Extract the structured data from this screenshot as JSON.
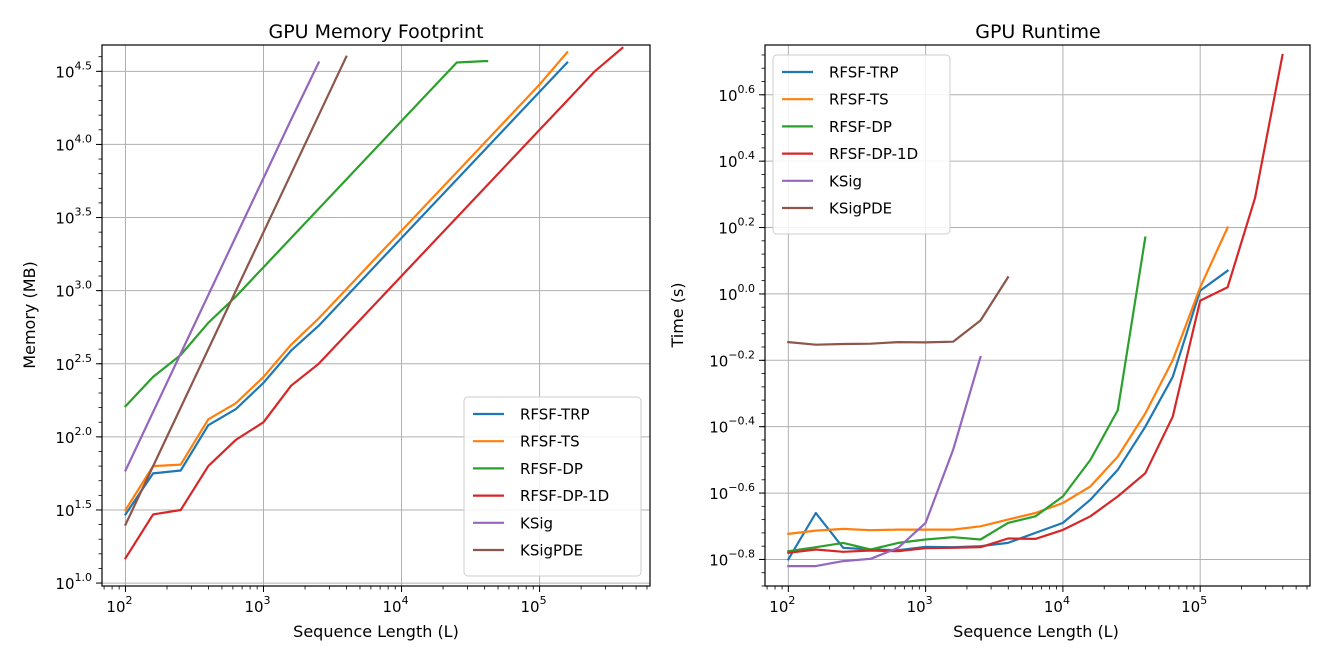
{
  "charts": [
    {
      "title": "GPU Memory Footprint",
      "xlabel": "Sequence Length (L)",
      "ylabel": "Memory (MB)",
      "xticks": [
        {
          "base": "10",
          "exp": "2"
        },
        {
          "base": "10",
          "exp": "3"
        },
        {
          "base": "10",
          "exp": "4"
        },
        {
          "base": "10",
          "exp": "5"
        }
      ],
      "yticks": [
        {
          "base": "10",
          "exp": "1.0"
        },
        {
          "base": "10",
          "exp": "1.5"
        },
        {
          "base": "10",
          "exp": "2.0"
        },
        {
          "base": "10",
          "exp": "2.5"
        },
        {
          "base": "10",
          "exp": "3.0"
        },
        {
          "base": "10",
          "exp": "3.5"
        },
        {
          "base": "10",
          "exp": "4.0"
        },
        {
          "base": "10",
          "exp": "4.5"
        }
      ]
    },
    {
      "title": "GPU Runtime",
      "xlabel": "Sequence Length (L)",
      "ylabel": "Time (s)",
      "xticks": [
        {
          "base": "10",
          "exp": "2"
        },
        {
          "base": "10",
          "exp": "3"
        },
        {
          "base": "10",
          "exp": "4"
        },
        {
          "base": "10",
          "exp": "5"
        }
      ],
      "yticks": [
        {
          "base": "10",
          "exp": "−0.8"
        },
        {
          "base": "10",
          "exp": "−0.6"
        },
        {
          "base": "10",
          "exp": "−0.4"
        },
        {
          "base": "10",
          "exp": "−0.2"
        },
        {
          "base": "10",
          "exp": "0.0"
        },
        {
          "base": "10",
          "exp": "0.2"
        },
        {
          "base": "10",
          "exp": "0.4"
        },
        {
          "base": "10",
          "exp": "0.6"
        }
      ]
    }
  ],
  "chart_data": [
    {
      "type": "line",
      "title": "GPU Memory Footprint",
      "xlabel": "Sequence Length (L)",
      "ylabel": "Memory (MB)",
      "xscale": "log",
      "yscale": "log",
      "xlim_log10": [
        1.83,
        5.8
      ],
      "ylim_log10": [
        0.98,
        4.68
      ],
      "grid": true,
      "legend": "lower-right",
      "series": [
        {
          "name": "RFSF-TRP",
          "color": "#1f77b4",
          "log10_x": [
            2.0,
            2.2,
            2.4,
            2.6,
            2.8,
            3.0,
            3.2,
            3.4,
            3.6,
            3.8,
            4.0,
            4.2,
            4.4,
            4.6,
            4.8,
            5.0,
            5.2
          ],
          "log10_y": [
            1.47,
            1.75,
            1.77,
            2.08,
            2.19,
            2.37,
            2.59,
            2.76,
            2.96,
            3.16,
            3.36,
            3.56,
            3.76,
            3.96,
            4.16,
            4.36,
            4.56
          ]
        },
        {
          "name": "RFSF-TS",
          "color": "#ff7f0e",
          "log10_x": [
            2.0,
            2.2,
            2.4,
            2.6,
            2.8,
            3.0,
            3.2,
            3.4,
            3.6,
            3.8,
            4.0,
            4.2,
            4.4,
            4.6,
            4.8,
            5.0,
            5.2
          ],
          "log10_y": [
            1.5,
            1.8,
            1.81,
            2.12,
            2.23,
            2.41,
            2.63,
            2.81,
            3.01,
            3.21,
            3.41,
            3.61,
            3.81,
            4.01,
            4.21,
            4.41,
            4.63
          ]
        },
        {
          "name": "RFSF-DP",
          "color": "#2ca02c",
          "log10_x": [
            2.0,
            2.2,
            2.4,
            2.6,
            2.8,
            3.0,
            3.2,
            3.4,
            3.6,
            3.8,
            4.0,
            4.2,
            4.4,
            4.6,
            4.62
          ],
          "log10_y": [
            2.21,
            2.41,
            2.56,
            2.78,
            2.96,
            3.16,
            3.36,
            3.56,
            3.76,
            3.96,
            4.16,
            4.36,
            4.56,
            4.57,
            4.57
          ]
        },
        {
          "name": "RFSF-DP-1D",
          "color": "#d62728",
          "log10_x": [
            2.0,
            2.2,
            2.4,
            2.6,
            2.8,
            3.0,
            3.2,
            3.4,
            3.6,
            3.8,
            4.0,
            4.2,
            4.4,
            4.6,
            4.8,
            5.0,
            5.2,
            5.4,
            5.6
          ],
          "log10_y": [
            1.17,
            1.47,
            1.5,
            1.8,
            1.98,
            2.1,
            2.35,
            2.5,
            2.7,
            2.9,
            3.1,
            3.3,
            3.5,
            3.7,
            3.9,
            4.1,
            4.3,
            4.5,
            4.66
          ]
        },
        {
          "name": "KSig",
          "color": "#9467bd",
          "log10_x": [
            2.0,
            2.2,
            2.4,
            2.6,
            2.8,
            3.0,
            3.2,
            3.4
          ],
          "log10_y": [
            1.77,
            2.17,
            2.57,
            2.97,
            3.37,
            3.77,
            4.17,
            4.56
          ]
        },
        {
          "name": "KSigPDE",
          "color": "#8c564b",
          "log10_x": [
            2.0,
            2.2,
            2.4,
            2.6,
            2.8,
            3.0,
            3.2,
            3.4,
            3.6
          ],
          "log10_y": [
            1.4,
            1.8,
            2.2,
            2.6,
            3.0,
            3.4,
            3.8,
            4.2,
            4.6
          ]
        }
      ]
    },
    {
      "type": "line",
      "title": "GPU Runtime",
      "xlabel": "Sequence Length (L)",
      "ylabel": "Time (s)",
      "xscale": "log",
      "yscale": "log",
      "xlim_log10": [
        1.83,
        5.8
      ],
      "ylim_log10": [
        -0.88,
        0.75
      ],
      "grid": true,
      "legend": "top-left",
      "series": [
        {
          "name": "RFSF-TRP",
          "color": "#1f77b4",
          "log10_x": [
            2.0,
            2.2,
            2.4,
            2.6,
            2.8,
            3.0,
            3.2,
            3.4,
            3.6,
            3.8,
            4.0,
            4.2,
            4.4,
            4.6,
            4.8,
            5.0,
            5.2
          ],
          "log10_y": [
            -0.8,
            -0.66,
            -0.765,
            -0.77,
            -0.772,
            -0.762,
            -0.763,
            -0.76,
            -0.75,
            -0.72,
            -0.69,
            -0.62,
            -0.53,
            -0.4,
            -0.25,
            0.01,
            0.07
          ]
        },
        {
          "name": "RFSF-TS",
          "color": "#ff7f0e",
          "log10_x": [
            2.0,
            2.2,
            2.4,
            2.6,
            2.8,
            3.0,
            3.2,
            3.4,
            3.6,
            3.8,
            4.0,
            4.2,
            4.4,
            4.6,
            4.8,
            5.0,
            5.2
          ],
          "log10_y": [
            -0.723,
            -0.713,
            -0.708,
            -0.712,
            -0.71,
            -0.71,
            -0.71,
            -0.7,
            -0.68,
            -0.66,
            -0.63,
            -0.58,
            -0.49,
            -0.36,
            -0.2,
            0.02,
            0.2
          ]
        },
        {
          "name": "RFSF-DP",
          "color": "#2ca02c",
          "log10_x": [
            2.0,
            2.2,
            2.4,
            2.6,
            2.8,
            3.0,
            3.2,
            3.4,
            3.6,
            3.8,
            4.0,
            4.2,
            4.4,
            4.6
          ],
          "log10_y": [
            -0.775,
            -0.763,
            -0.75,
            -0.77,
            -0.75,
            -0.74,
            -0.733,
            -0.74,
            -0.69,
            -0.67,
            -0.61,
            -0.5,
            -0.35,
            0.17
          ]
        },
        {
          "name": "RFSF-DP-1D",
          "color": "#d62728",
          "log10_x": [
            2.0,
            2.2,
            2.4,
            2.6,
            2.8,
            3.0,
            3.2,
            3.4,
            3.6,
            3.8,
            4.0,
            4.2,
            4.4,
            4.6,
            4.8,
            5.0,
            5.2,
            5.4,
            5.6
          ],
          "log10_y": [
            -0.78,
            -0.77,
            -0.777,
            -0.773,
            -0.775,
            -0.766,
            -0.765,
            -0.763,
            -0.737,
            -0.738,
            -0.711,
            -0.67,
            -0.61,
            -0.54,
            -0.37,
            -0.02,
            0.02,
            0.29,
            0.72
          ]
        },
        {
          "name": "KSig",
          "color": "#9467bd",
          "log10_x": [
            2.0,
            2.2,
            2.4,
            2.6,
            2.8,
            3.0,
            3.2,
            3.4
          ],
          "log10_y": [
            -0.82,
            -0.82,
            -0.805,
            -0.798,
            -0.765,
            -0.69,
            -0.47,
            -0.19
          ]
        },
        {
          "name": "KSigPDE",
          "color": "#8c564b",
          "log10_x": [
            2.0,
            2.2,
            2.4,
            2.6,
            2.8,
            3.0,
            3.2,
            3.4,
            3.6
          ],
          "log10_y": [
            -0.145,
            -0.153,
            -0.151,
            -0.15,
            -0.145,
            -0.146,
            -0.144,
            -0.08,
            0.05
          ]
        }
      ]
    }
  ]
}
